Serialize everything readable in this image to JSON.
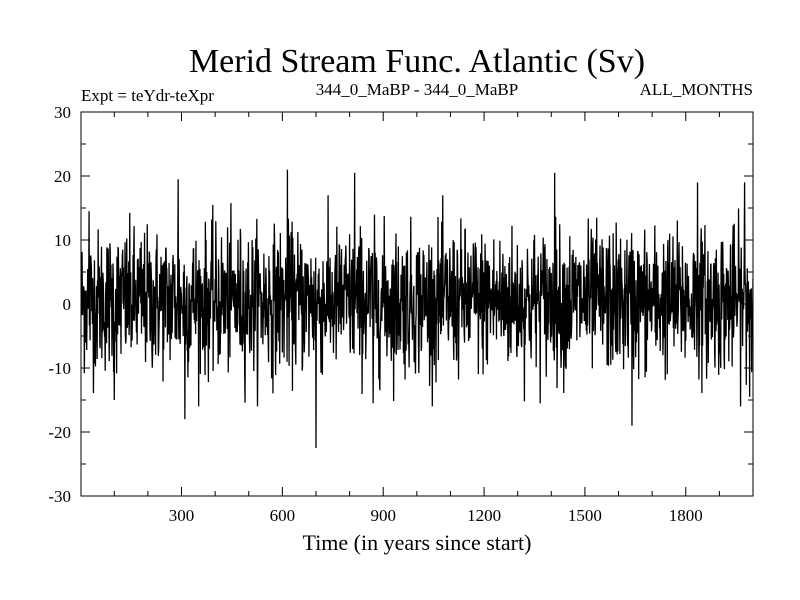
{
  "chart_data": {
    "type": "line",
    "title": "Merid Stream Func. Atlantic (Sv)",
    "subtitle_left": "Expt = teYdr-teXpr",
    "subtitle_center": "344_0_MaBP - 344_0_MaBP",
    "subtitle_right": "ALL_MONTHS",
    "xlabel": "Time (in years since start)",
    "ylabel": "",
    "xlim": [
      1,
      2000
    ],
    "ylim": [
      -30,
      30
    ],
    "x_ticks": [
      300,
      600,
      900,
      1200,
      1500,
      1800
    ],
    "x_tick_labels": [
      "300",
      "600",
      "900",
      "1200",
      "1500",
      "1800"
    ],
    "y_ticks": [
      30,
      20,
      10,
      0,
      -10,
      -20,
      -30
    ],
    "y_tick_labels": [
      "30",
      "20",
      "10",
      "0",
      "-10",
      "-20",
      "-30"
    ],
    "series": [
      {
        "name": "Merid Stream Func. Atlantic",
        "color": "#000000",
        "x_start": 1,
        "x_step": 1,
        "n_points": 2000,
        "mean": 0.5,
        "std_dev": 5.5,
        "notable_points": [
          {
            "x": 25,
            "y": 14.5
          },
          {
            "x": 100,
            "y": -15
          },
          {
            "x": 290,
            "y": 19.5
          },
          {
            "x": 310,
            "y": -18
          },
          {
            "x": 615,
            "y": 21
          },
          {
            "x": 700,
            "y": -22.5
          },
          {
            "x": 815,
            "y": 20.5
          },
          {
            "x": 870,
            "y": -15.5
          },
          {
            "x": 1410,
            "y": 20.5
          },
          {
            "x": 1640,
            "y": -19
          },
          {
            "x": 1835,
            "y": 19
          },
          {
            "x": 1975,
            "y": 19
          },
          {
            "x": 1990,
            "y": -14.5
          }
        ]
      }
    ]
  }
}
